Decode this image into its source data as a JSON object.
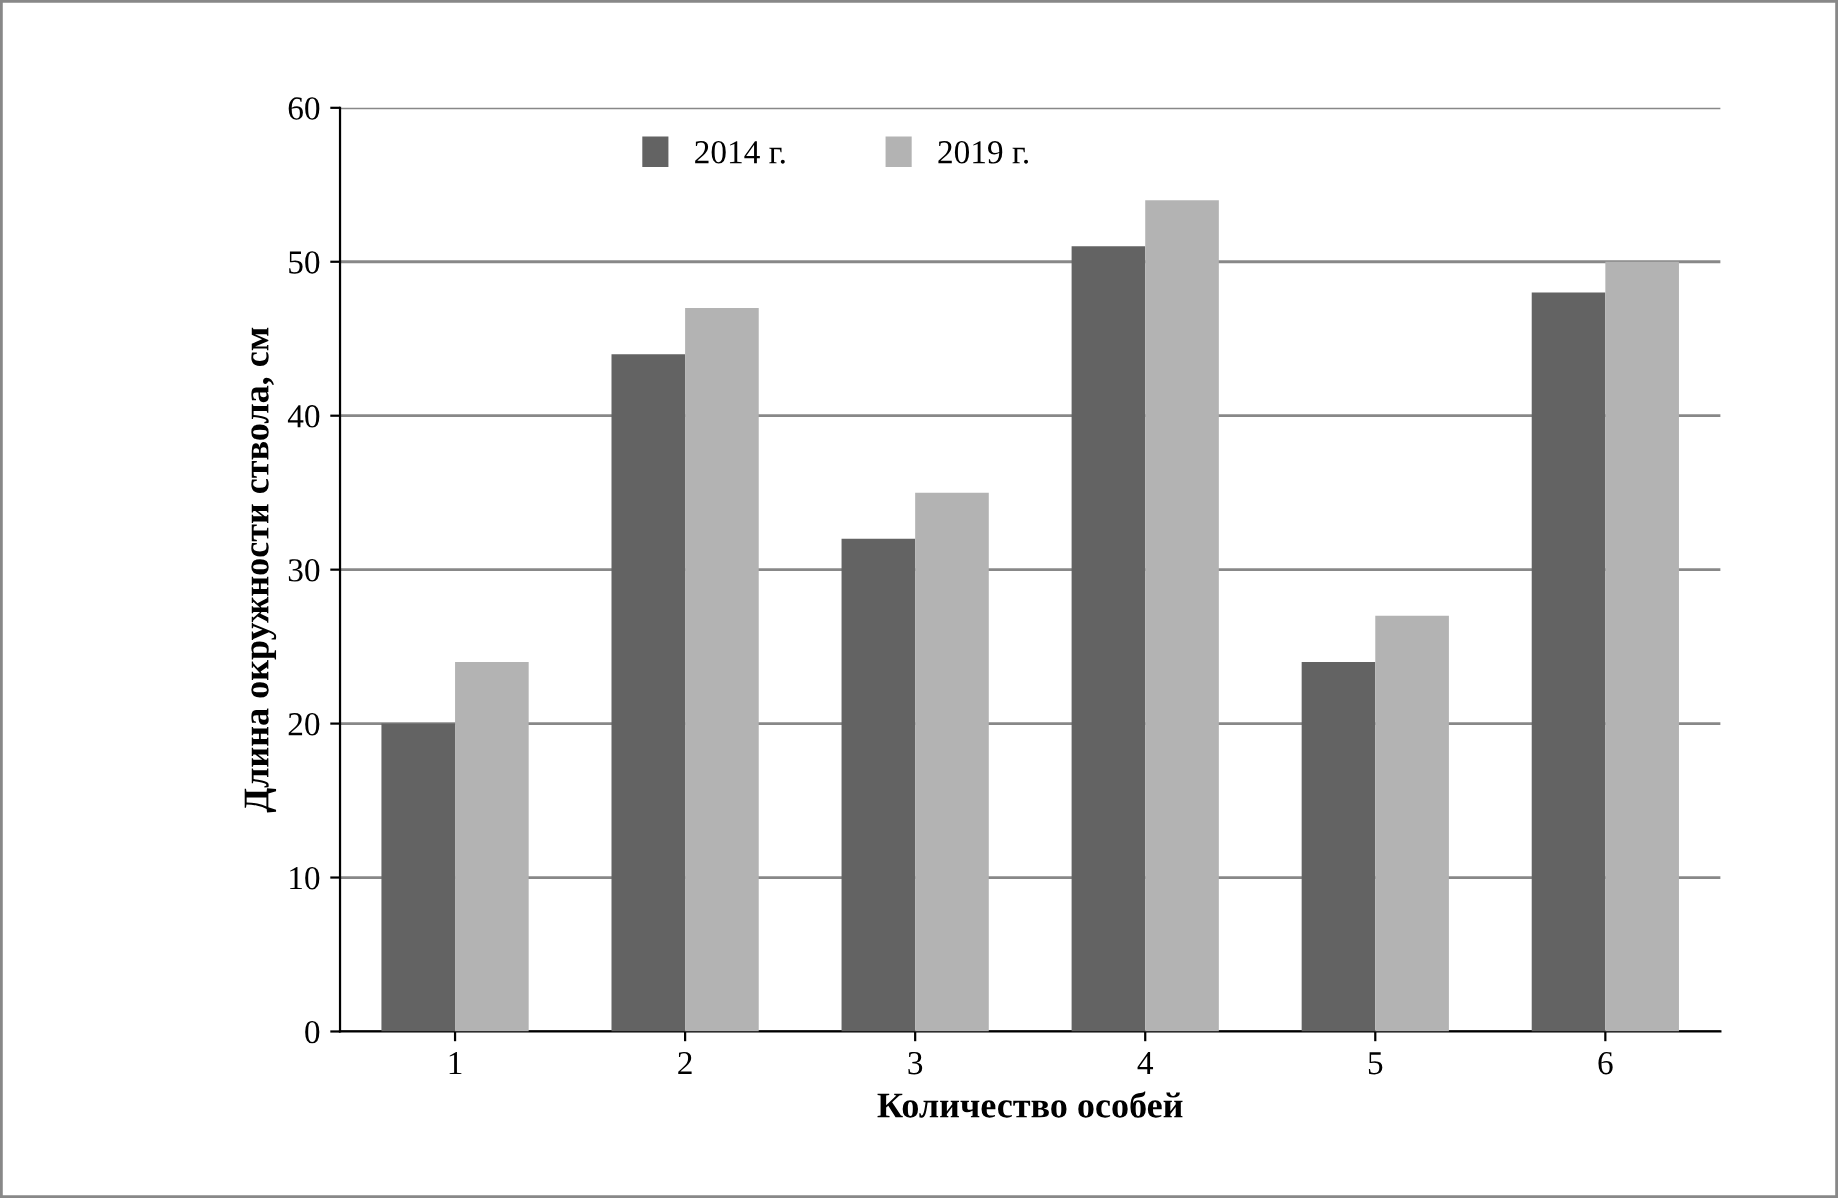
{
  "chart_data": {
    "type": "bar",
    "xlabel": "Количество особей",
    "ylabel": "Длина окружности ствола, см",
    "categories": [
      "1",
      "2",
      "3",
      "4",
      "5",
      "6"
    ],
    "series": [
      {
        "name": "2014 г.",
        "color": "#636363",
        "values": [
          20,
          44,
          32,
          51,
          24,
          48
        ]
      },
      {
        "name": "2019 г.",
        "color": "#b3b3b3",
        "values": [
          24,
          47,
          35,
          54,
          27,
          50
        ]
      }
    ],
    "ylim": [
      0,
      60
    ],
    "yticks": [
      0,
      10,
      20,
      30,
      40,
      50,
      60
    ],
    "grid": "y",
    "legend": "top"
  }
}
